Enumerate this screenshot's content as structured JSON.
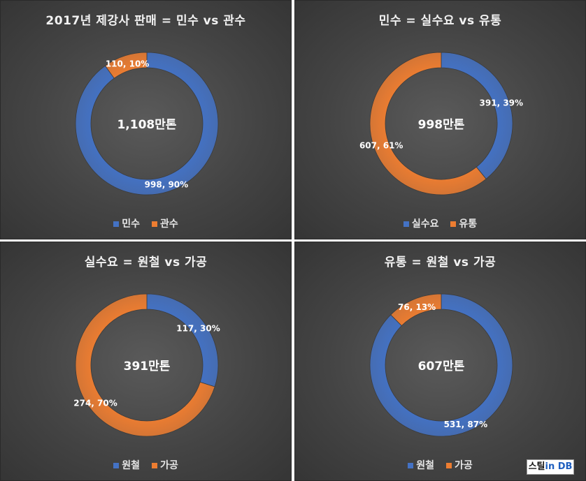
{
  "colors": {
    "blue": "#4472c4",
    "orange": "#ed7d31",
    "label": "#ffffff"
  },
  "chart_data": [
    {
      "type": "pie",
      "title": "2017년 제강사 판매 = 민수 vs 관수",
      "center_label": "1,108만톤",
      "categories": [
        "민수",
        "관수"
      ],
      "values": [
        998,
        110
      ],
      "percents": [
        90,
        10
      ],
      "data_labels": [
        "998, 90%",
        "110, 10%"
      ],
      "legend": "bottom"
    },
    {
      "type": "pie",
      "title": "민수 = 실수요 vs 유통",
      "center_label": "998만톤",
      "categories": [
        "실수요",
        "유통"
      ],
      "values": [
        391,
        607
      ],
      "percents": [
        39,
        61
      ],
      "data_labels": [
        "391, 39%",
        "607, 61%"
      ],
      "legend": "bottom"
    },
    {
      "type": "pie",
      "title": "실수요 = 원철 vs 가공",
      "center_label": "391만톤",
      "categories": [
        "원철",
        "가공"
      ],
      "values": [
        117,
        274
      ],
      "percents": [
        30,
        70
      ],
      "data_labels": [
        "117, 30%",
        "274, 70%"
      ],
      "legend": "bottom"
    },
    {
      "type": "pie",
      "title": "유통 = 원철 vs 가공",
      "center_label": "607만톤",
      "categories": [
        "원철",
        "가공"
      ],
      "values": [
        531,
        76
      ],
      "percents": [
        87,
        13
      ],
      "data_labels": [
        "531, 87%",
        "76, 13%"
      ],
      "legend": "bottom"
    }
  ],
  "logo": {
    "text_main": "스틸",
    "text_accent": "in DB"
  }
}
